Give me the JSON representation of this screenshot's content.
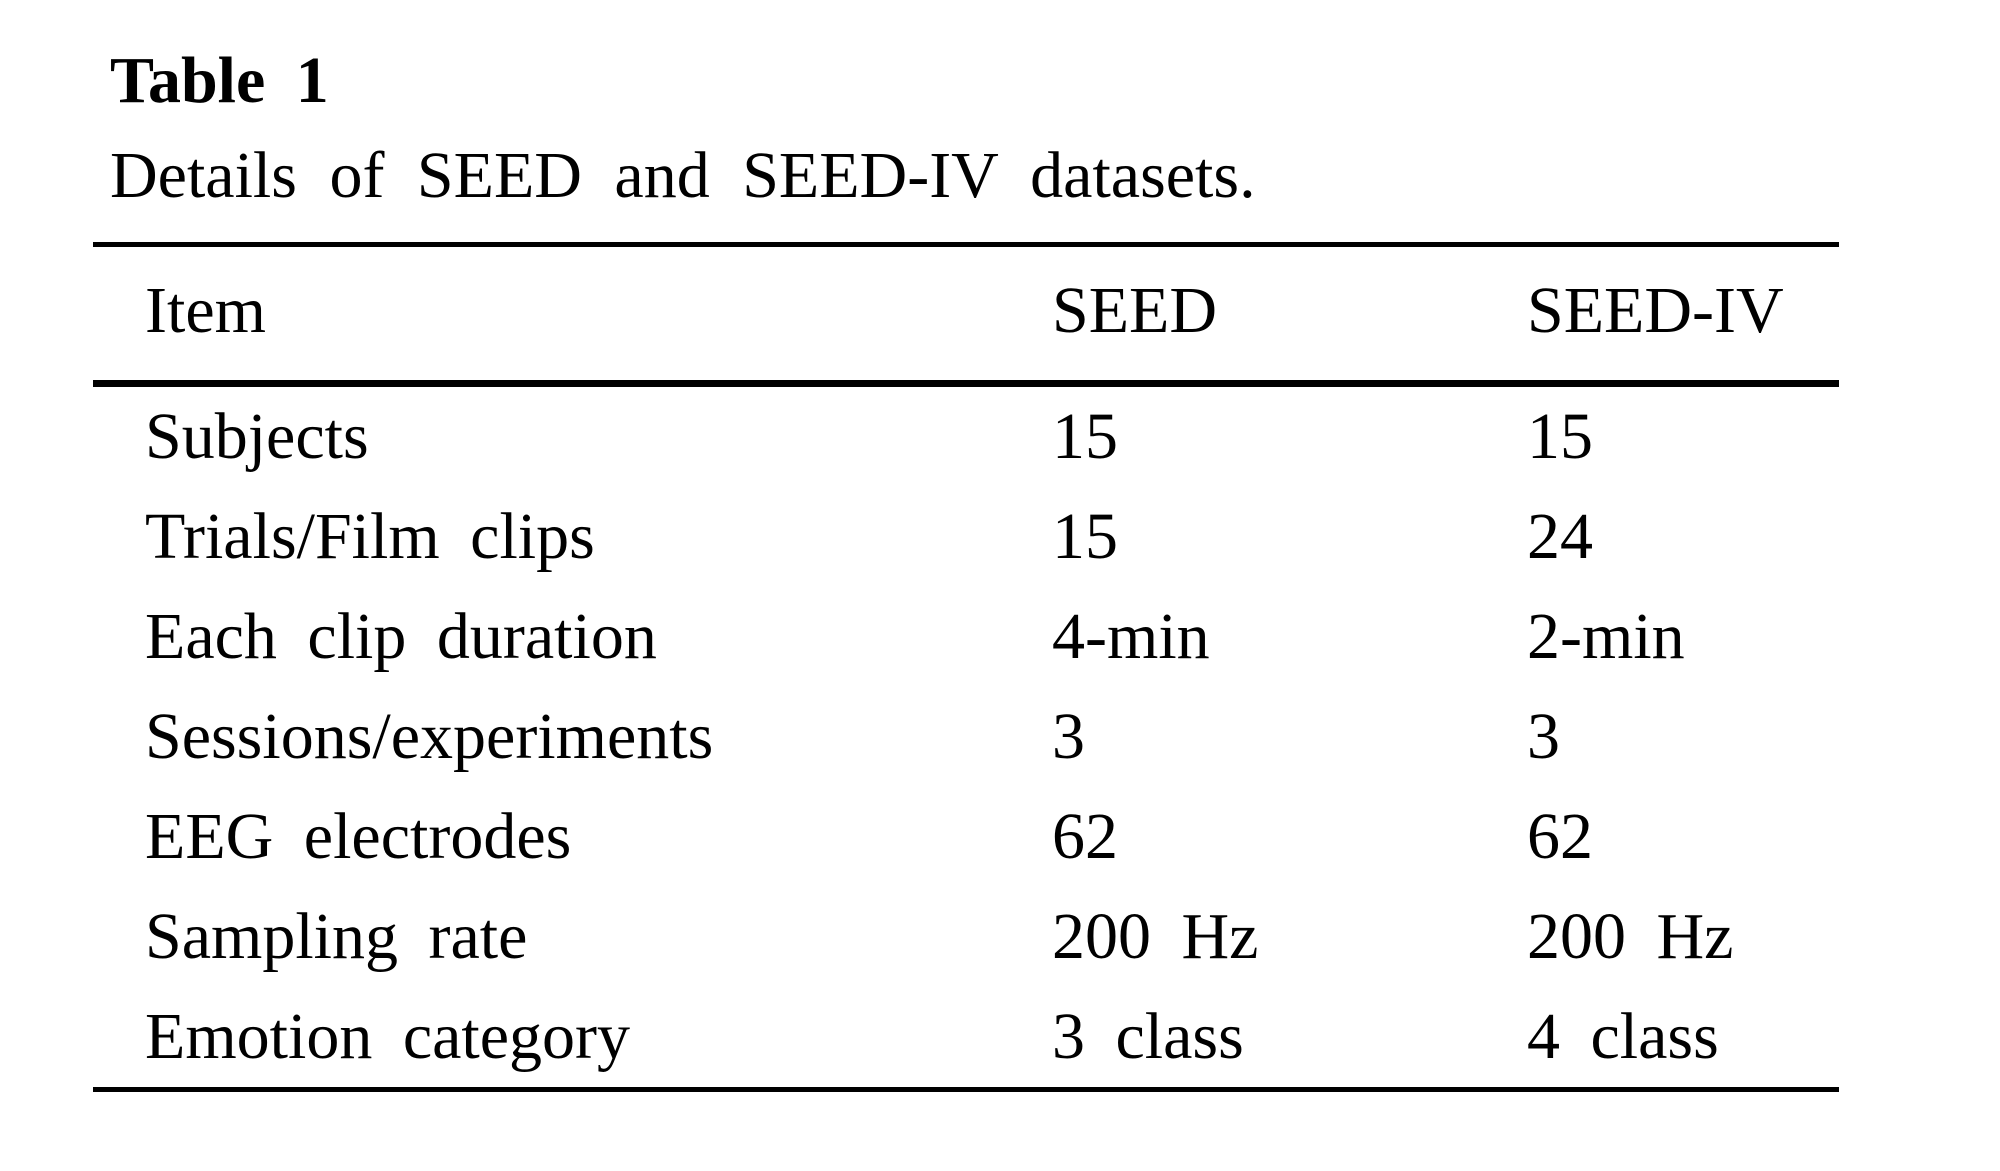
{
  "table": {
    "label": "Table 1",
    "caption": "Details of SEED and SEED-IV datasets.",
    "columns": [
      "Item",
      "SEED",
      "SEED-IV"
    ],
    "rows": [
      {
        "item": "Subjects",
        "seed": "15",
        "seed_iv": "15"
      },
      {
        "item": "Trials/Film clips",
        "seed": "15",
        "seed_iv": "24"
      },
      {
        "item": "Each clip duration",
        "seed": "4-min",
        "seed_iv": "2-min"
      },
      {
        "item": "Sessions/experiments",
        "seed": "3",
        "seed_iv": "3"
      },
      {
        "item": "EEG electrodes",
        "seed": "62",
        "seed_iv": "62"
      },
      {
        "item": "Sampling rate",
        "seed": "200 Hz",
        "seed_iv": "200 Hz"
      },
      {
        "item": "Emotion category",
        "seed": "3 class",
        "seed_iv": "4 class"
      }
    ]
  },
  "chart_data": {
    "type": "table",
    "title": "Table 1. Details of SEED and SEED-IV datasets.",
    "columns": [
      "Item",
      "SEED",
      "SEED-IV"
    ],
    "rows": [
      [
        "Subjects",
        "15",
        "15"
      ],
      [
        "Trials/Film clips",
        "15",
        "24"
      ],
      [
        "Each clip duration",
        "4-min",
        "2-min"
      ],
      [
        "Sessions/experiments",
        "3",
        "3"
      ],
      [
        "EEG electrodes",
        "62",
        "62"
      ],
      [
        "Sampling rate",
        "200 Hz",
        "200 Hz"
      ],
      [
        "Emotion category",
        "3 class",
        "4 class"
      ]
    ]
  },
  "colors": {
    "text": "#000000",
    "background": "#ffffff",
    "rule": "#000000"
  }
}
